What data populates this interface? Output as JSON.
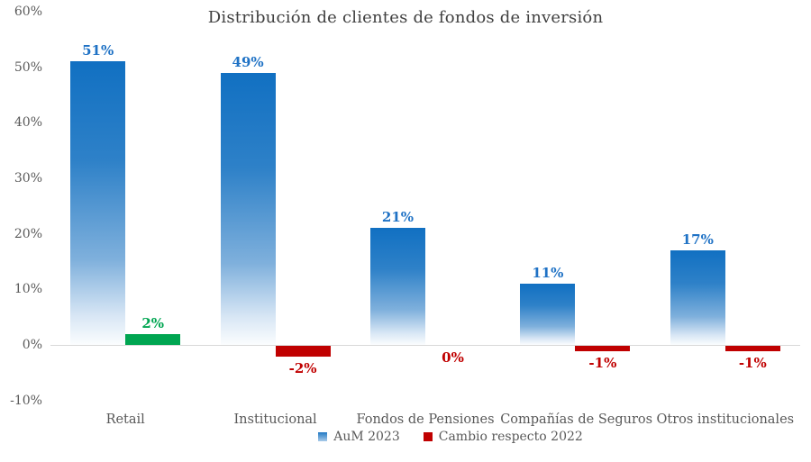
{
  "title": "Distribución de clientes de fondos de inversión",
  "palette": {
    "bar_gradient_top": "#1170C2",
    "bar_gradient_bottom": "#FBFDFE",
    "positive_green": "#00A551",
    "negative_red": "#C00000",
    "value_label_blue": "#1F72C5",
    "text_gray": "#595959",
    "title_gray": "#404040",
    "axis_line_gray": "#D9D9D9"
  },
  "legend": [
    {
      "label": "AuM 2023",
      "swatch": "aum"
    },
    {
      "label": "Cambio respecto 2022",
      "swatch": "change"
    }
  ],
  "chart_data": {
    "type": "bar",
    "title": "Distribución de clientes de fondos de inversión",
    "categories": [
      "Retail",
      "Institucional",
      "Fondos de Pensiones",
      "Compañías de Seguros",
      "Otros institucionales"
    ],
    "series": [
      {
        "name": "AuM 2023",
        "values": [
          51,
          49,
          21,
          11,
          17
        ],
        "unit": "%"
      },
      {
        "name": "Cambio respecto 2022",
        "values": [
          2,
          -2,
          0,
          -1,
          -1
        ],
        "unit": "%"
      }
    ],
    "value_labels": [
      [
        "51%",
        "49%",
        "21%",
        "11%",
        "17%"
      ],
      [
        "2%",
        "-2%",
        "0%",
        "-1%",
        "-1%"
      ]
    ],
    "xlabel": "",
    "ylabel": "",
    "ylim": [
      -10,
      60
    ],
    "y_ticks": [
      60,
      50,
      40,
      30,
      20,
      10,
      0,
      -10
    ],
    "y_tick_labels": [
      "60%",
      "50%",
      "40%",
      "30%",
      "20%",
      "10%",
      "0%",
      "-10%"
    ],
    "grid": false,
    "legend_position": "bottom"
  }
}
